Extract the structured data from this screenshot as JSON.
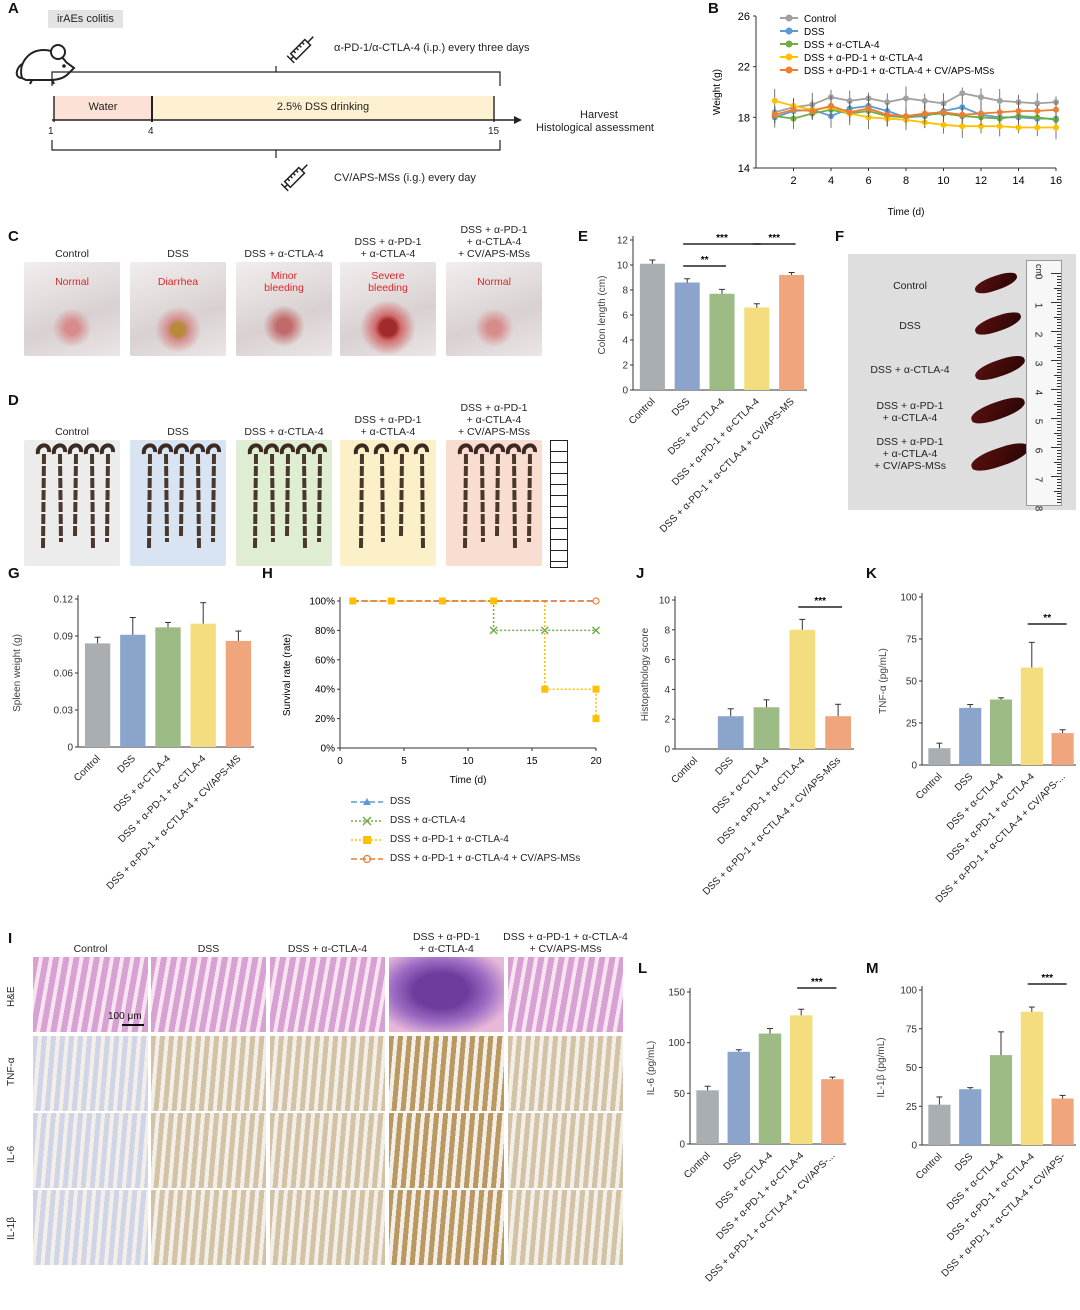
{
  "panels": {
    "A": "A",
    "B": "B",
    "C": "C",
    "D": "D",
    "E": "E",
    "F": "F",
    "G": "G",
    "H": "H",
    "I": "I",
    "J": "J",
    "K": "K",
    "L": "L",
    "M": "M"
  },
  "panelA": {
    "badge": "irAEs colitis",
    "top_text": "α-PD-1/α-CTLA-4 (i.p.) every three days",
    "bottom_text": "CV/APS-MSs (i.g.) every day",
    "water": "Water",
    "dss": "2.5% DSS drinking",
    "ticks": [
      "1",
      "4",
      "15"
    ],
    "harvest": "Harvest",
    "histo": "Histological assessment"
  },
  "groups": [
    "Control",
    "DSS",
    "DSS + α-CTLA-4",
    "DSS + α-PD-1 + α-CTLA-4",
    "DSS + α-PD-1 + α-CTLA-4 + CV/APS-MSs"
  ],
  "panelC": {
    "titles": [
      "Control",
      "DSS",
      "DSS + α-CTLA-4",
      "DSS + α-PD-1\n+ α-CTLA-4",
      "DSS + α-PD-1\n+ α-CTLA-4\n+ CV/APS-MSs"
    ],
    "notes": [
      "Normal",
      "Diarrhea",
      "Minor\nbleeding",
      "Severe\nbleeding",
      "Normal"
    ]
  },
  "panelD": {
    "titles": [
      "Control",
      "DSS",
      "DSS + α-CTLA-4",
      "DSS + α-PD-1\n+ α-CTLA-4",
      "DSS + α-PD-1\n+ α-CTLA-4\n+ CV/APS-MSs"
    ]
  },
  "panelF": {
    "labels": [
      "Control",
      "DSS",
      "DSS + α-CTLA-4",
      "DSS + α-PD-1\n+ α-CTLA-4",
      "DSS + α-PD-1\n+ α-CTLA-4\n+ CV/APS-MSs"
    ],
    "ruler_unit": "cm",
    "ruler_ticks": [
      "0",
      "1",
      "2",
      "3",
      "4",
      "5",
      "6",
      "7",
      "8"
    ]
  },
  "panelI": {
    "titles": [
      "Control",
      "DSS",
      "DSS + α-CTLA-4",
      "DSS + α-PD-1\n+ α-CTLA-4",
      "DSS + α-PD-1 + α-CTLA-4\n+ CV/APS-MSs"
    ],
    "rows": [
      "H&E",
      "TNF-α",
      "IL-6",
      "IL-1β"
    ],
    "scalebar": "100 μm"
  },
  "colors": {
    "control": "#a9aeb3",
    "dss": "#8ba4cc",
    "ctla": "#9dbb85",
    "pd1": "#f4dd7e",
    "ms": "#f0a57c",
    "lc_control": "#a0a0a0",
    "lc_dss": "#5b9bd5",
    "lc_ctla": "#70ad47",
    "lc_pd1": "#ffc000",
    "lc_ms": "#ed7d31"
  },
  "chart_data": [
    {
      "id": "B",
      "type": "line",
      "xlabel": "Time (d)",
      "ylabel": "Weight (g)",
      "xlim": [
        0,
        16
      ],
      "ylim": [
        14,
        26
      ],
      "xticks": [
        2,
        4,
        6,
        8,
        10,
        12,
        14,
        16
      ],
      "yticks": [
        14,
        18,
        22,
        26
      ],
      "x": [
        1,
        2,
        3,
        4,
        5,
        6,
        7,
        8,
        9,
        10,
        11,
        12,
        13,
        14,
        15,
        16
      ],
      "series": [
        {
          "name": "Control",
          "values": [
            18.4,
            18.8,
            19.0,
            19.6,
            19.3,
            19.5,
            19.2,
            19.5,
            19.3,
            19.1,
            19.9,
            19.6,
            19.3,
            19.2,
            19.1,
            19.2
          ]
        },
        {
          "name": "DSS",
          "values": [
            18.0,
            18.5,
            18.6,
            18.1,
            18.7,
            18.9,
            18.5,
            18.0,
            18.1,
            18.5,
            18.8,
            18.2,
            18.0,
            18.0,
            17.9,
            17.9
          ]
        },
        {
          "name": "DSS + α-CTLA-4",
          "values": [
            18.1,
            17.9,
            18.3,
            18.6,
            18.3,
            18.5,
            18.1,
            18.0,
            18.2,
            18.3,
            18.1,
            18.0,
            17.9,
            18.1,
            18.0,
            17.8
          ]
        },
        {
          "name": "DSS + α-PD-1 + α-CTLA-4",
          "values": [
            19.3,
            18.9,
            18.6,
            18.8,
            18.3,
            18.0,
            17.9,
            17.8,
            17.6,
            17.4,
            17.3,
            17.3,
            17.3,
            17.2,
            17.2,
            17.2
          ]
        },
        {
          "name": "DSS + α-PD-1 + α-CTLA-4 + CV/APS-MSs",
          "values": [
            18.2,
            18.6,
            18.5,
            18.9,
            18.4,
            18.7,
            18.2,
            18.1,
            18.3,
            18.4,
            18.2,
            18.3,
            18.4,
            18.5,
            18.5,
            18.6
          ]
        }
      ]
    },
    {
      "id": "E",
      "type": "bar",
      "ylabel": "Colon length (cm)",
      "ylim": [
        0,
        12
      ],
      "yticks": [
        0,
        2,
        4,
        6,
        8,
        10,
        12
      ],
      "categories": [
        "Control",
        "DSS",
        "DSS + α-CTLA-4",
        "DSS + α-PD-1 + α-CTLA-4",
        "DSS + α-PD-1 + α-CTLA-4 + CV/APS-MS"
      ],
      "values": [
        10.1,
        8.6,
        7.7,
        6.6,
        9.2
      ],
      "errors": [
        0.3,
        0.3,
        0.35,
        0.3,
        0.2
      ],
      "sig": [
        {
          "from": 1,
          "to": 2,
          "label": "**"
        },
        {
          "from": 1,
          "to": 3,
          "label": "***"
        },
        {
          "from": 3,
          "to": 4,
          "label": "***"
        }
      ]
    },
    {
      "id": "G",
      "type": "bar",
      "ylabel": "Spleen weight (g)",
      "ylim": [
        0,
        0.12
      ],
      "yticks": [
        0,
        0.03,
        0.06,
        0.09,
        0.12
      ],
      "ytick_labels": [
        "0",
        "0.03",
        "0.06",
        "0.09",
        "0.12"
      ],
      "categories": [
        "Control",
        "DSS",
        "DSS + α-CTLA-4",
        "DSS + α-PD-1 + α-CTLA-4",
        "DSS + α-PD-1 + α-CTLA-4 + CV/APS-MS"
      ],
      "values": [
        0.084,
        0.091,
        0.097,
        0.1,
        0.086
      ],
      "errors": [
        0.005,
        0.014,
        0.004,
        0.017,
        0.008
      ],
      "sig": []
    },
    {
      "id": "H",
      "type": "line",
      "xlabel": "Time (d)",
      "ylabel": "Survival rate (rate)",
      "xlim": [
        0,
        20
      ],
      "ylim": [
        0,
        100
      ],
      "xticks": [
        0,
        5,
        10,
        15,
        20
      ],
      "yticks": [
        0,
        20,
        40,
        60,
        80,
        100
      ],
      "ytick_labels": [
        "0%",
        "20%",
        "40%",
        "60%",
        "80%",
        "100%"
      ],
      "series": [
        {
          "name": "DSS",
          "x": [
            1,
            4,
            8,
            12,
            16,
            20
          ],
          "values": [
            100,
            100,
            100,
            100,
            100,
            100
          ]
        },
        {
          "name": "DSS + α-CTLA-4",
          "x": [
            12,
            16,
            20
          ],
          "values": [
            80,
            80,
            80
          ]
        },
        {
          "name": "DSS + α-PD-1 + α-CTLA-4",
          "x": [
            1,
            4,
            8,
            12,
            16,
            20,
            20
          ],
          "values": [
            100,
            100,
            100,
            100,
            40,
            40,
            20
          ]
        },
        {
          "name": "DSS + α-PD-1 + α-CTLA-4 + CV/APS-MSs",
          "x": [
            1,
            4,
            8,
            12,
            16,
            20
          ],
          "values": [
            100,
            100,
            100,
            100,
            100,
            100
          ]
        }
      ]
    },
    {
      "id": "J",
      "type": "bar",
      "ylabel": "Histopathology score",
      "ylim": [
        0,
        10
      ],
      "yticks": [
        0,
        2,
        4,
        6,
        8,
        10
      ],
      "categories": [
        "Control",
        "DSS",
        "DSS + α-CTLA-4",
        "DSS + α-PD-1 + α-CTLA-4",
        "DSS + α-PD-1 + α-CTLA-4 + CV/APS-MSs"
      ],
      "values": [
        0,
        2.2,
        2.8,
        8.0,
        2.2
      ],
      "errors": [
        0,
        0.5,
        0.5,
        0.7,
        0.8
      ],
      "sig": [
        {
          "from": 3,
          "to": 4,
          "label": "***"
        }
      ]
    },
    {
      "id": "K",
      "type": "bar",
      "ylabel": "TNF-α (pg/mL)",
      "ylim": [
        0,
        100
      ],
      "yticks": [
        0,
        25,
        50,
        75,
        100
      ],
      "categories": [
        "Control",
        "DSS",
        "DSS + α-CTLA-4",
        "DSS + α-PD-1 + α-CTLA-4",
        "DSS + α-PD-1 + α-CTLA-4 + CV/APS-..."
      ],
      "values": [
        10,
        34,
        39,
        58,
        19
      ],
      "errors": [
        3,
        2,
        1,
        15,
        2
      ],
      "sig": [
        {
          "from": 3,
          "to": 4,
          "label": "**"
        }
      ]
    },
    {
      "id": "L",
      "type": "bar",
      "ylabel": "IL-6 (pg/mL)",
      "ylim": [
        0,
        150
      ],
      "yticks": [
        0,
        50,
        100,
        150
      ],
      "categories": [
        "Control",
        "DSS",
        "DSS + α-CTLA-4",
        "DSS + α-PD-1 + α-CTLA-4",
        "DSS + α-PD-1 + α-CTLA-4 + CV/APS-..."
      ],
      "values": [
        53,
        91,
        109,
        127,
        64
      ],
      "errors": [
        4,
        2,
        5,
        6,
        2
      ],
      "sig": [
        {
          "from": 3,
          "to": 4,
          "label": "***"
        }
      ]
    },
    {
      "id": "M",
      "type": "bar",
      "ylabel": "IL-1β (pg/mL)",
      "ylim": [
        0,
        100
      ],
      "yticks": [
        0,
        25,
        50,
        75,
        100
      ],
      "categories": [
        "Control",
        "DSS",
        "DSS + α-CTLA-4",
        "DSS + α-PD-1 + α-CTLA-4",
        "DSS + α-PD-1 + α-CTLA-4 + CV/APS-"
      ],
      "values": [
        26,
        36,
        58,
        86,
        30
      ],
      "errors": [
        5,
        1,
        15,
        3,
        2
      ],
      "sig": [
        {
          "from": 3,
          "to": 4,
          "label": "***"
        }
      ]
    }
  ]
}
